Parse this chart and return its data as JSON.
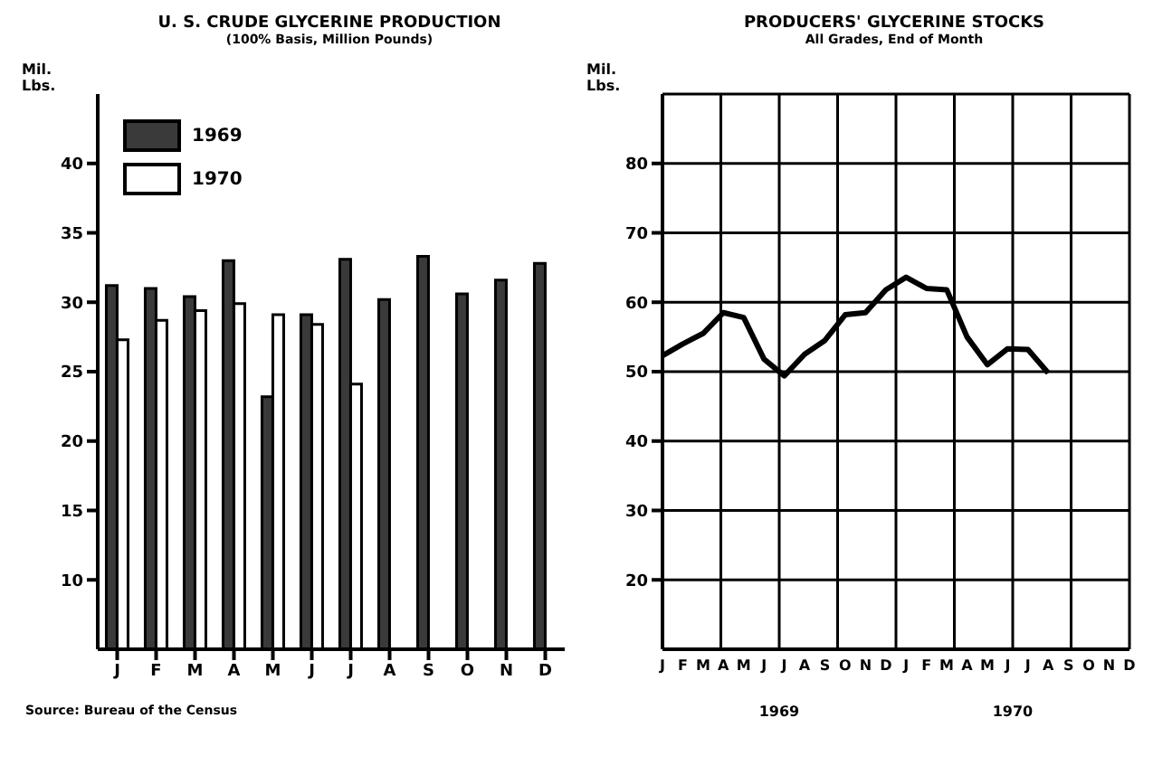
{
  "chart_data": [
    {
      "type": "bar",
      "title": "U. S. CRUDE GLYCERINE PRODUCTION",
      "subtitle": "(100% Basis, Million Pounds)",
      "ylabel": "Mil. Lbs.",
      "categories": [
        "J",
        "F",
        "M",
        "A",
        "M",
        "J",
        "J",
        "A",
        "S",
        "O",
        "N",
        "D"
      ],
      "series": [
        {
          "name": "1969",
          "color": "#3a3a3a",
          "values": [
            31.2,
            31.0,
            30.4,
            33.0,
            23.2,
            29.1,
            33.1,
            30.2,
            33.3,
            30.6,
            31.6,
            32.8
          ]
        },
        {
          "name": "1970",
          "color": "#ffffff",
          "values": [
            27.3,
            28.7,
            29.4,
            29.9,
            29.1,
            28.4,
            24.1,
            null,
            null,
            null,
            null,
            null
          ]
        }
      ],
      "ylim": [
        5,
        45
      ],
      "yticks": [
        10,
        15,
        20,
        25,
        30,
        35,
        40
      ],
      "grid": false,
      "legend": "top left",
      "annotations": [
        "Source: Bureau of the Census"
      ]
    },
    {
      "type": "line",
      "title": "PRODUCERS' GLYCERINE STOCKS",
      "subtitle": "All Grades, End of Month",
      "ylabel": "Mil. Lbs.",
      "categories": [
        "J",
        "F",
        "M",
        "A",
        "M",
        "J",
        "J",
        "A",
        "S",
        "O",
        "N",
        "D",
        "J",
        "F",
        "M",
        "A",
        "M",
        "J",
        "J",
        "A",
        "S",
        "O",
        "N",
        "D"
      ],
      "series": [
        {
          "color": "#000000",
          "values": [
            52.3,
            54,
            55.5,
            58.5,
            57.8,
            51.8,
            49.4,
            52.5,
            54.5,
            58.2,
            58.5,
            61.8,
            63.6,
            62,
            61.8,
            55,
            51,
            53.3,
            53.2,
            49.8,
            null,
            null,
            null,
            null
          ]
        }
      ],
      "ylim": [
        10,
        90
      ],
      "yticks": [
        20,
        30,
        40,
        50,
        60,
        70,
        80
      ],
      "grid": true,
      "marker": "none",
      "line_style": "solid",
      "annotations": [
        "1969",
        "1970"
      ]
    }
  ]
}
